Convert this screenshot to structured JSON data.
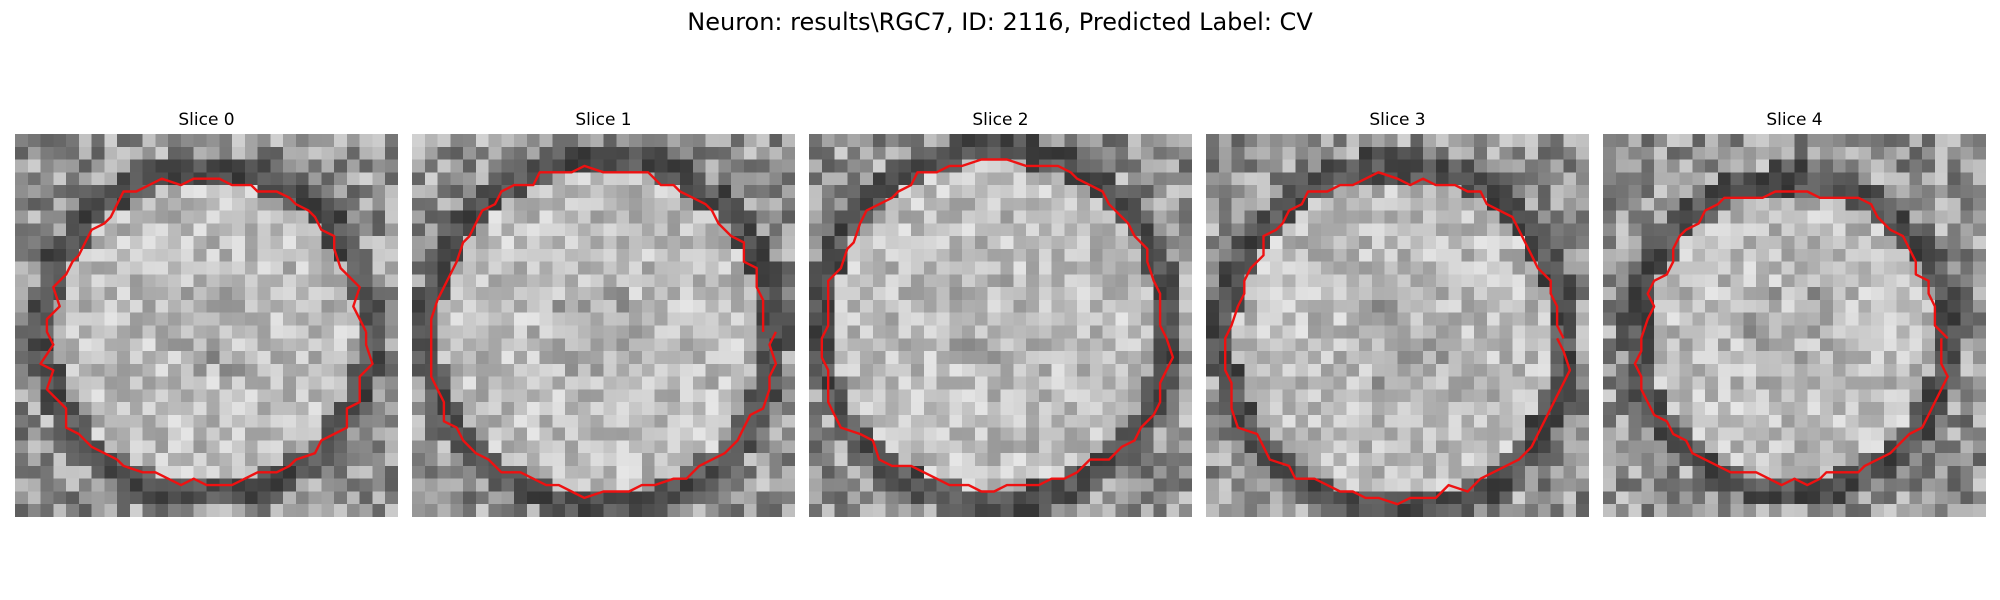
{
  "figure": {
    "title": "Neuron: results\\RGC7, ID: 2116, Predicted Label: CV"
  },
  "panels": [
    {
      "title": "Slice 0"
    },
    {
      "title": "Slice 1"
    },
    {
      "title": "Slice 2"
    },
    {
      "title": "Slice 3"
    },
    {
      "title": "Slice 4"
    }
  ],
  "colors": {
    "contour": "#ee1111"
  }
}
